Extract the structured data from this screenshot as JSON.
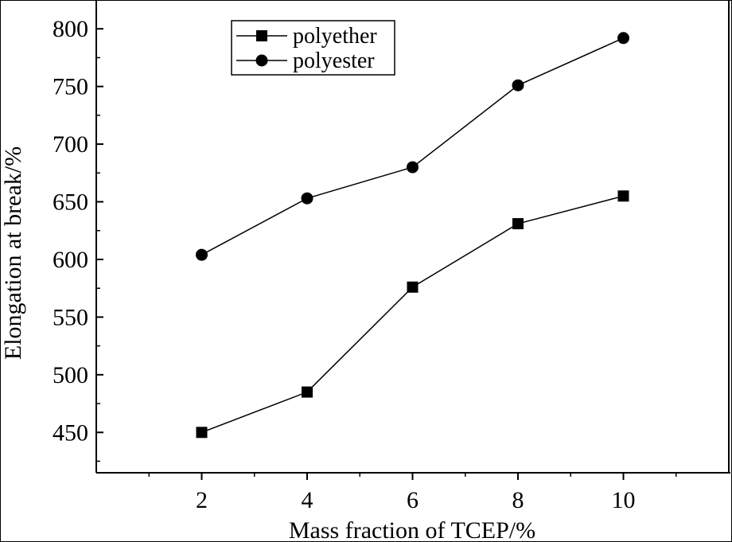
{
  "chart_data": {
    "type": "line",
    "title": "",
    "xlabel": "Mass fraction of TCEP/%",
    "ylabel": "Elongation at break/%",
    "x": [
      2,
      4,
      6,
      8,
      10
    ],
    "xlim": [
      0,
      12
    ],
    "ylim": [
      415,
      825
    ],
    "xticks": [
      "2",
      "4",
      "6",
      "8",
      "10"
    ],
    "yticks": [
      "450",
      "500",
      "550",
      "600",
      "650",
      "700",
      "750",
      "800"
    ],
    "grid": false,
    "legend_position": "top-left",
    "series": [
      {
        "name": "polyether",
        "marker": "square",
        "values": [
          450,
          485,
          576,
          631,
          655
        ]
      },
      {
        "name": "polyester",
        "marker": "circle",
        "values": [
          604,
          653,
          680,
          751,
          792
        ]
      }
    ]
  }
}
